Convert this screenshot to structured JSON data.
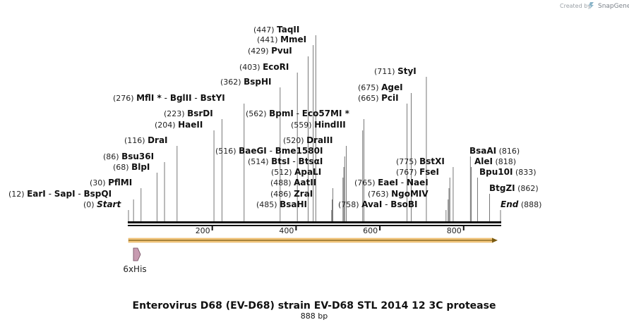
{
  "credit": {
    "prefix": "Created by",
    "brand": "SnapGene"
  },
  "title": "Enterovirus D68 (EV-D68) strain EV-D68 STL 2014 12 3C protease",
  "length_label": "888 bp",
  "scale": {
    "ticks": [
      200,
      400,
      600,
      800
    ]
  },
  "feature": {
    "name": "6xHis"
  },
  "labels": [
    {
      "id": "start",
      "items": [
        {
          "pos": "(0)",
          "name": "Start",
          "italic": true
        }
      ],
      "site": 0
    },
    {
      "id": "end",
      "items": [
        {
          "name": "End",
          "italic": true
        },
        {
          "pos": "(888)"
        }
      ],
      "site": 888
    },
    {
      "id": "ear",
      "items": [
        {
          "pos": "(12)",
          "name": "EarI"
        },
        {
          "name": "SapI"
        },
        {
          "name": "BspQI"
        }
      ],
      "site": 12
    },
    {
      "id": "pfl",
      "items": [
        {
          "pos": "(30)",
          "name": "PflMI"
        }
      ],
      "site": 30
    },
    {
      "id": "blp",
      "items": [
        {
          "pos": "(68)",
          "name": "BlpI"
        }
      ],
      "site": 68
    },
    {
      "id": "bsu",
      "items": [
        {
          "pos": "(86)",
          "name": "Bsu36I"
        }
      ],
      "site": 86
    },
    {
      "id": "dra",
      "items": [
        {
          "pos": "(116)",
          "name": "DraI"
        }
      ],
      "site": 116
    },
    {
      "id": "hae",
      "items": [
        {
          "pos": "(204)",
          "name": "HaeII"
        }
      ],
      "site": 204
    },
    {
      "id": "bsr",
      "items": [
        {
          "pos": "(223)",
          "name": "BsrDI"
        }
      ],
      "site": 223
    },
    {
      "id": "mfl",
      "items": [
        {
          "pos": "(276)",
          "name": "MflI *"
        },
        {
          "name": "BglII"
        },
        {
          "name": "BstYI"
        }
      ],
      "site": 276
    },
    {
      "id": "bae",
      "items": [
        {
          "pos": "(516)",
          "name": "BaeGI"
        },
        {
          "name": "Bme1580I"
        }
      ],
      "site": 516
    },
    {
      "id": "bsp",
      "items": [
        {
          "pos": "(362)",
          "name": "BspHI"
        }
      ],
      "site": 362
    },
    {
      "id": "eco",
      "items": [
        {
          "pos": "(403)",
          "name": "EcoRI"
        }
      ],
      "site": 403
    },
    {
      "id": "pvu",
      "items": [
        {
          "pos": "(429)",
          "name": "PvuI"
        }
      ],
      "site": 429
    },
    {
      "id": "mme",
      "items": [
        {
          "pos": "(441)",
          "name": "MmeI"
        }
      ],
      "site": 441
    },
    {
      "id": "taq",
      "items": [
        {
          "pos": "(447)",
          "name": "TaqII"
        }
      ],
      "site": 447
    },
    {
      "id": "bpm",
      "items": [
        {
          "pos": "(562)",
          "name": "BpmI"
        },
        {
          "name": "Eco57MI *"
        }
      ],
      "site": 562
    },
    {
      "id": "hind",
      "items": [
        {
          "pos": "(559)",
          "name": "HindIII"
        }
      ],
      "site": 559
    },
    {
      "id": "dra3",
      "items": [
        {
          "pos": "(520)",
          "name": "DraIII"
        }
      ],
      "site": 520
    },
    {
      "id": "bts",
      "items": [
        {
          "pos": "(514)",
          "name": "BtsI"
        },
        {
          "name": "BtsαI"
        }
      ],
      "site": 514
    },
    {
      "id": "apa",
      "items": [
        {
          "pos": "(512)",
          "name": "ApaLI"
        }
      ],
      "site": 512
    },
    {
      "id": "aat",
      "items": [
        {
          "pos": "(488)",
          "name": "AatII"
        }
      ],
      "site": 488
    },
    {
      "id": "zra",
      "items": [
        {
          "pos": "(486)",
          "name": "ZraI"
        }
      ],
      "site": 486
    },
    {
      "id": "bsah",
      "items": [
        {
          "pos": "(485)",
          "name": "BsaHI"
        }
      ],
      "site": 485
    },
    {
      "id": "ava",
      "items": [
        {
          "pos": "(758)",
          "name": "AvaI"
        },
        {
          "name": "BsoBI"
        }
      ],
      "site": 758
    },
    {
      "id": "ngo",
      "items": [
        {
          "pos": "(763)",
          "name": "NgoMIV"
        }
      ],
      "site": 763
    },
    {
      "id": "eae",
      "items": [
        {
          "pos": "(765)",
          "name": "EaeI"
        },
        {
          "name": "NaeI"
        }
      ],
      "site": 765
    },
    {
      "id": "fse",
      "items": [
        {
          "pos": "(767)",
          "name": "FseI"
        }
      ],
      "site": 767
    },
    {
      "id": "bstx",
      "items": [
        {
          "pos": "(775)",
          "name": "BstXI"
        }
      ],
      "site": 775
    },
    {
      "id": "pci",
      "items": [
        {
          "pos": "(665)",
          "name": "PciI"
        }
      ],
      "site": 665
    },
    {
      "id": "age",
      "items": [
        {
          "pos": "(675)",
          "name": "AgeI"
        }
      ],
      "site": 675
    },
    {
      "id": "sty",
      "items": [
        {
          "pos": "(711)",
          "name": "StyI"
        }
      ],
      "site": 711
    },
    {
      "id": "bsaa",
      "items": [
        {
          "name": "BsaAI"
        },
        {
          "pos": "(816)"
        }
      ],
      "site": 816
    },
    {
      "id": "ale",
      "items": [
        {
          "name": "AleI"
        },
        {
          "pos": "(818)"
        }
      ],
      "site": 818
    },
    {
      "id": "bpu",
      "items": [
        {
          "name": "Bpu10I"
        },
        {
          "pos": "(833)"
        }
      ],
      "site": 833
    },
    {
      "id": "btg",
      "items": [
        {
          "name": "BtgZI"
        },
        {
          "pos": "(862)"
        }
      ],
      "site": 862
    }
  ]
}
